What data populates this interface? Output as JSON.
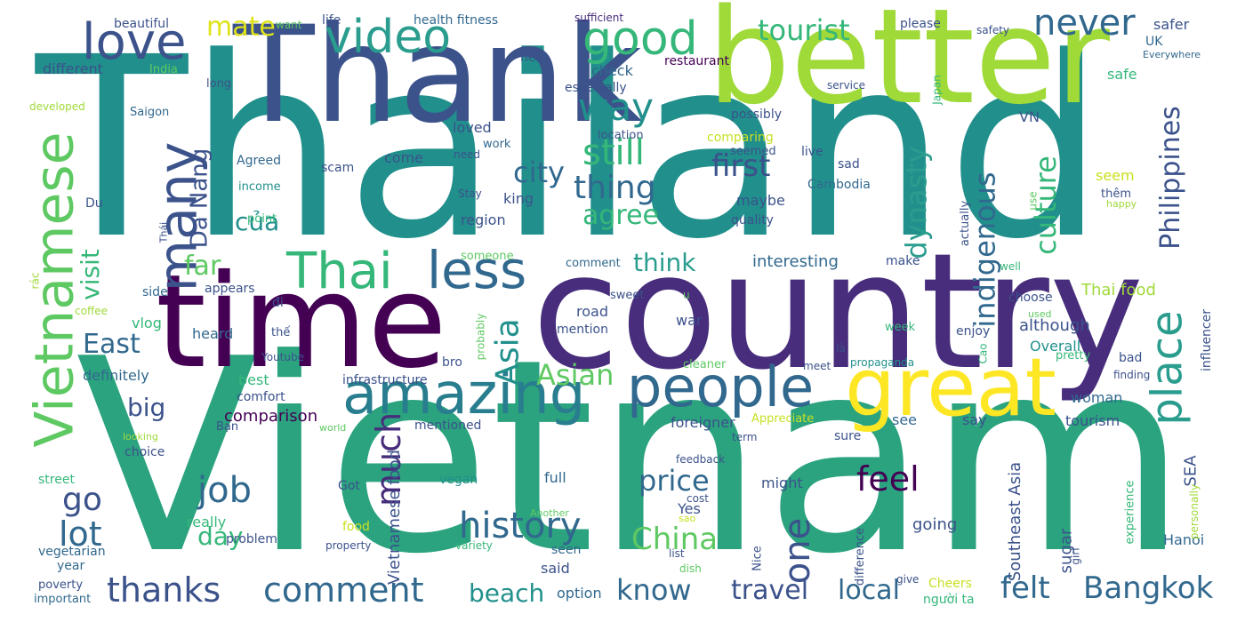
{
  "palette": {
    "background": "#ffffff",
    "dark_purple": "#440154",
    "indigo": "#3b528b",
    "blue_teal": "#31688e",
    "teal": "#21908c",
    "sea_green": "#35b779",
    "green": "#2a9d6e",
    "lime": "#a0da39",
    "yellow": "#fde725"
  },
  "words": {
    "thailand": "Thailand",
    "vietnam": "Vietnam",
    "country": "country",
    "better": "better",
    "thank": "Thank",
    "time": "time",
    "great": "great",
    "vietnamese": "Vietnamese",
    "people": "people",
    "amazing": "amazing",
    "love": "love",
    "video": "video",
    "good": "good",
    "never": "never",
    "tourist": "tourist",
    "mate": "mate",
    "many": "many",
    "thai": "Thai",
    "less": "less",
    "place": "place",
    "way": "way",
    "still": "still",
    "thing": "thing",
    "city": "city",
    "first": "first",
    "agree": "agree",
    "dynasty": "dynasty",
    "indigenous": "indigenous",
    "culture": "culture",
    "philippines": "Philippines",
    "da_nang": "Da Nang",
    "cua": "của",
    "visit": "visit",
    "far": "far",
    "think": "think",
    "east": "East",
    "asia": "Asia",
    "asian": "Asian",
    "big": "big",
    "job": "job",
    "much": "much",
    "go": "go",
    "lot": "lot",
    "history": "history",
    "one": "one",
    "china": "China",
    "price": "price",
    "feel": "feel",
    "felt": "felt",
    "bangkok": "Bangkok",
    "thanks": "thanks",
    "comment": "comment",
    "know": "know",
    "travel": "travel",
    "local": "local",
    "beach": "beach",
    "day": "day",
    "comparison": "comparison",
    "vietnamese_food": "Vietnamese food",
    "southeast_asia": "Southeast Asia",
    "thai_food": "Thai food",
    "interesting": "interesting",
    "although": "although",
    "overall": "Overall",
    "woman": "woman",
    "tourism": "tourism",
    "sea": "SEA",
    "hanoi": "Hanoi",
    "sugar": "sugar",
    "say": "say",
    "see": "see",
    "sure": "sure",
    "foreigner": "foreigner",
    "might": "might",
    "going": "going",
    "full": "full",
    "seen": "seen",
    "said": "said",
    "option": "option",
    "road": "road",
    "mention": "mention",
    "war": "war",
    "heard": "heard",
    "vlog": "vlog",
    "side": "side",
    "definitely": "definitely",
    "best": "best",
    "comfort": "comfort",
    "choice": "choice",
    "street": "street",
    "got": "Got",
    "vegan": "vegan",
    "really": "really",
    "problem": "problem",
    "vegetarian": "vegetarian",
    "year": "year",
    "poverty": "poverty",
    "important": "important",
    "food": "food",
    "property": "property",
    "variety": "variety",
    "list": "list",
    "dish": "dish",
    "nice": "Nice",
    "difference": "difference",
    "give": "give",
    "girl": "girl",
    "cheers": "Cheers",
    "nguoi_ta": "người ta",
    "experience": "experience",
    "personally": "personally",
    "beautiful": "beautiful",
    "want": "want",
    "life": "life",
    "health_fitness": "health fitness",
    "sufficient": "sufficient",
    "please": "please",
    "safety": "safety",
    "safer": "safer",
    "uk": "UK",
    "everywhere": "Everywhere",
    "safe": "safe",
    "different": "different",
    "india": "India",
    "long": "long",
    "help": "help",
    "check": "check",
    "restaurant": "restaurant",
    "especially": "especially",
    "service": "service",
    "japan": "Japan",
    "developed": "developed",
    "saigon": "Saigon",
    "loved": "loved",
    "location": "location",
    "possibly": "possibly",
    "vn": "VN",
    "work": "work",
    "need": "need",
    "come": "come",
    "comparing": "comparing",
    "seemed": "seemed",
    "live": "live",
    "sad": "sad",
    "agreed": "Agreed",
    "scam": "scam",
    "income": "income",
    "stay": "Stay",
    "king": "king",
    "region": "region",
    "maybe": "maybe",
    "quality": "quality",
    "cambodia": "Cambodia",
    "seem": "seem",
    "them": "thêm",
    "happy": "happy",
    "du": "Du",
    "thai_small": "Thái",
    "point": "point",
    "someone": "someone",
    "use": "use",
    "actually": "actually",
    "well": "well",
    "rac": "rác",
    "make": "make",
    "coffee": "coffee",
    "appears": "appears",
    "di": "đi",
    "the": "thế",
    "youtube": "Youtube",
    "sweet": "sweet",
    "u": "u",
    "probably": "probably",
    "bro": "bro",
    "choose": "choose",
    "used": "used",
    "week": "week",
    "enjoy": "enjoy",
    "la": "là",
    "cao": "Cao",
    "meet": "meet",
    "propaganda": "propaganda",
    "cleaner": "cleaner",
    "pretty": "pretty",
    "bad": "bad",
    "finding": "finding",
    "influencer": "influencer",
    "ban": "Bạn",
    "looking": "looking",
    "world": "world",
    "mentioned": "mentioned",
    "appreciate": "Appreciate",
    "term": "term",
    "feedback": "feedback",
    "cost": "cost",
    "yes": "Yes",
    "sao": "sao",
    "another": "Another",
    "infrastructure": "infrastructure"
  }
}
